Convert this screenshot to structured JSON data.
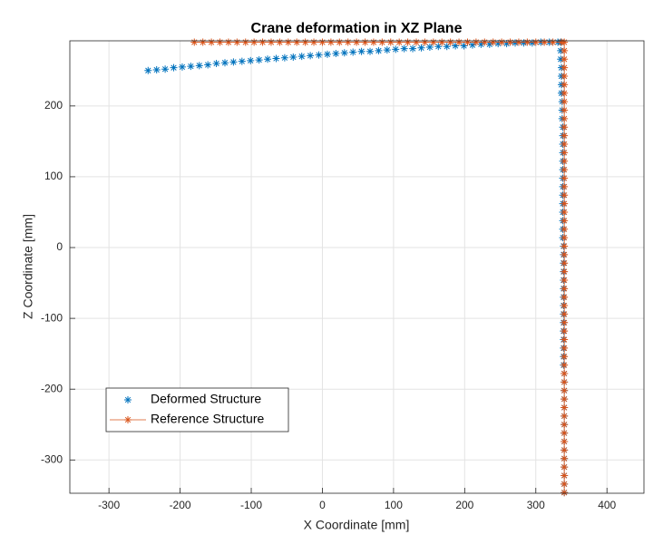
{
  "chart_data": {
    "type": "scatter",
    "title": "Crane deformation in XZ Plane",
    "x_label": "X Coordinate [mm]",
    "y_label": "Z Coordinate [mm]",
    "xlim": [
      -355,
      452
    ],
    "ylim": [
      -347,
      292
    ],
    "xticks": [
      -300,
      -200,
      -100,
      0,
      100,
      200,
      300,
      400
    ],
    "yticks": [
      -300,
      -200,
      -100,
      0,
      100,
      200
    ],
    "grid": true,
    "legend": "southwest",
    "marker": "*",
    "series": [
      {
        "name": "Deformed Structure",
        "color": "#0072bd",
        "line": false,
        "x": [
          -245,
          -233,
          -221,
          -209,
          -197,
          -185,
          -173,
          -161,
          -149,
          -137,
          -125,
          -113,
          -101,
          -89,
          -77,
          -65,
          -53,
          -41,
          -29,
          -17,
          -5,
          7,
          19,
          31,
          43,
          55,
          67,
          79,
          91,
          103,
          115,
          127,
          139,
          151,
          163,
          175,
          187,
          199,
          211,
          223,
          235,
          247,
          259,
          271,
          283,
          295,
          307,
          319,
          331,
          335,
          335,
          335,
          336,
          336,
          336,
          336,
          337,
          337,
          337,
          338,
          338,
          338,
          338,
          338,
          338,
          338,
          338,
          338,
          338,
          338,
          338,
          338,
          338,
          339,
          339,
          339,
          339,
          339,
          339,
          339,
          339,
          339,
          339,
          339,
          339,
          339,
          339,
          339,
          340,
          340,
          340,
          340,
          340,
          340,
          340,
          340,
          340,
          340,
          340,
          340,
          340,
          340,
          340
        ],
        "values": [
          250,
          251,
          252,
          254,
          255,
          256,
          257,
          258,
          260,
          261,
          262,
          263,
          264,
          265,
          266,
          267,
          268,
          269,
          270,
          271,
          272,
          273,
          274,
          275,
          276,
          277,
          277,
          278,
          279,
          280,
          281,
          281,
          282,
          283,
          284,
          284,
          285,
          285,
          286,
          287,
          287,
          288,
          288,
          289,
          289,
          289,
          290,
          290,
          290,
          290,
          278,
          266,
          254,
          242,
          230,
          218,
          206,
          194,
          182,
          170,
          158,
          146,
          134,
          122,
          110,
          98,
          86,
          74,
          62,
          50,
          38,
          26,
          14,
          2,
          -10,
          -22,
          -34,
          -46,
          -58,
          -70,
          -82,
          -94,
          -106,
          -118,
          -130,
          -142,
          -154,
          -166,
          -178,
          -190,
          -202,
          -214,
          -226,
          -238,
          -250,
          -262,
          -274,
          -286,
          -298,
          -310,
          -322,
          -334,
          -346
        ]
      },
      {
        "name": "Reference Structure",
        "color": "#d95319",
        "line": true,
        "x": [
          -180,
          -168,
          -156,
          -144,
          -132,
          -120,
          -108,
          -96,
          -84,
          -72,
          -60,
          -48,
          -36,
          -24,
          -12,
          0,
          12,
          24,
          36,
          48,
          60,
          72,
          84,
          96,
          108,
          120,
          132,
          144,
          156,
          168,
          180,
          192,
          204,
          216,
          228,
          240,
          252,
          264,
          276,
          288,
          300,
          312,
          324,
          336,
          340,
          340,
          340,
          340,
          340,
          340,
          340,
          340,
          340,
          340,
          340,
          340,
          340,
          340,
          340,
          340,
          340,
          340,
          340,
          340,
          340,
          340,
          340,
          340,
          340,
          340,
          340,
          340,
          340,
          340,
          340,
          340,
          340,
          340,
          340,
          340,
          340,
          340,
          340,
          340,
          340,
          340,
          340,
          340,
          340,
          340,
          340,
          340,
          340,
          340,
          340,
          340,
          340,
          340
        ],
        "values": [
          290,
          290,
          290,
          290,
          290,
          290,
          290,
          290,
          290,
          290,
          290,
          290,
          290,
          290,
          290,
          290,
          290,
          290,
          290,
          290,
          290,
          290,
          290,
          290,
          290,
          290,
          290,
          290,
          290,
          290,
          290,
          290,
          290,
          290,
          290,
          290,
          290,
          290,
          290,
          290,
          290,
          290,
          290,
          290,
          290,
          278,
          266,
          254,
          242,
          230,
          218,
          206,
          194,
          182,
          170,
          158,
          146,
          134,
          122,
          110,
          98,
          86,
          74,
          62,
          50,
          38,
          26,
          14,
          2,
          -10,
          -22,
          -34,
          -46,
          -58,
          -70,
          -82,
          -94,
          -106,
          -118,
          -130,
          -142,
          -154,
          -166,
          -178,
          -190,
          -202,
          -214,
          -226,
          -238,
          -250,
          -262,
          -274,
          -286,
          -298,
          -310,
          -322,
          -334,
          -346
        ]
      }
    ]
  }
}
